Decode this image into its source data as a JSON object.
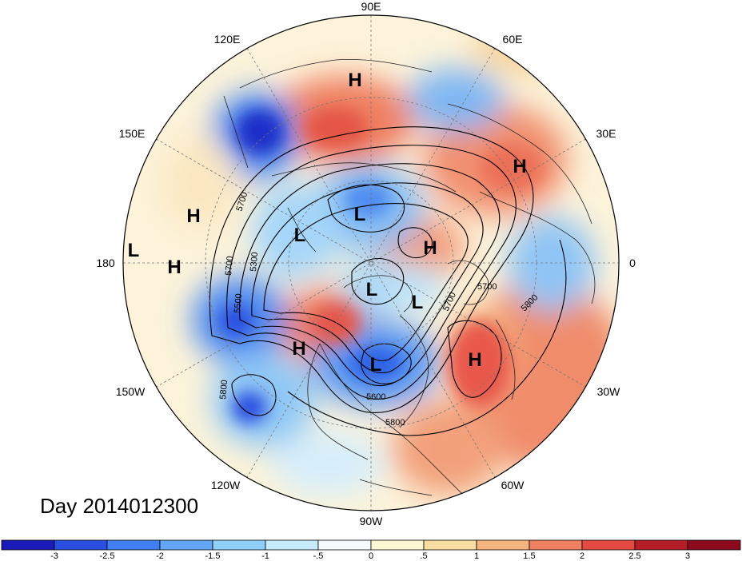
{
  "title": "Day 2014012300",
  "lon_labels": {
    "top": "90E",
    "upper_left": "120E",
    "upper_right": "60E",
    "left_upper": "150E",
    "right_upper": "30E",
    "left": "180",
    "right": "0",
    "left_lower": "150W",
    "right_lower": "30W",
    "lower_left": "120W",
    "lower_right": "60W",
    "bottom": "90W"
  },
  "pressure_centers": [
    "H",
    "H",
    "H",
    "H",
    "L",
    "L",
    "L",
    "H",
    "L",
    "L",
    "H",
    "L",
    "H"
  ],
  "contour_labels": [
    "5700",
    "5300",
    "5700",
    "5500",
    "5800",
    "5700",
    "5800",
    "5700",
    "5600",
    "5800"
  ],
  "colorbar": {
    "ticks": [
      "-3",
      "-2.5",
      "-2",
      "-1.5",
      "-1",
      "-.5",
      "0",
      ".5",
      "1",
      "1.5",
      "2",
      "2.5",
      "3"
    ],
    "colors": [
      "#1a1ab8",
      "#2a4fe0",
      "#3f7ff0",
      "#63a6f5",
      "#8fd0f8",
      "#c6ecfb",
      "#f3fbfd",
      "#fdf6d2",
      "#f8dda0",
      "#f6b47e",
      "#ef8060",
      "#e24a42",
      "#b41e28",
      "#8c0a1e"
    ]
  }
}
